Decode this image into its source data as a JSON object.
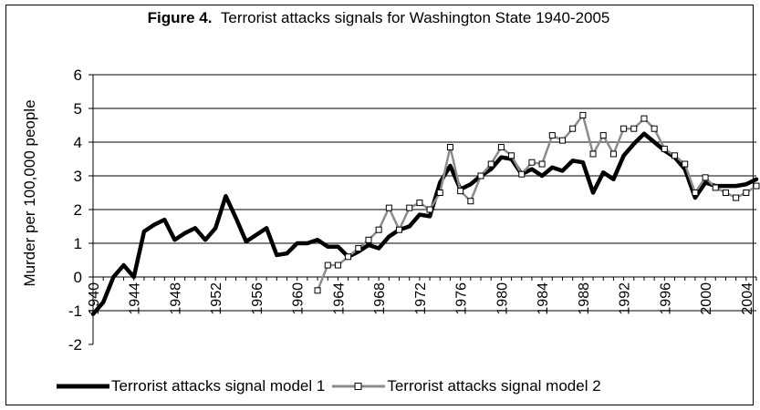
{
  "title_bold": "Figure 4.",
  "title_rest": "Terrorist attacks signals for Washington State 1940-2005",
  "chart_data": {
    "type": "line",
    "title": "Figure 4.  Terrorist attacks signals for Washington State 1940-2005",
    "xlabel": "",
    "ylabel": "Murder per 100,000 people",
    "ylim": [
      -2,
      6
    ],
    "xlim": [
      1940,
      2005
    ],
    "yticks": [
      -2,
      -1,
      0,
      1,
      2,
      3,
      4,
      5,
      6
    ],
    "xticks": [
      1940,
      1944,
      1948,
      1952,
      1956,
      1960,
      1964,
      1968,
      1972,
      1976,
      1980,
      1984,
      1988,
      1992,
      1996,
      2000,
      2004
    ],
    "grid": "horizontal",
    "legend_position": "bottom",
    "series": [
      {
        "name": "Terrorist attacks signal model 1",
        "color": "#000000",
        "x": [
          1940,
          1941,
          1942,
          1943,
          1944,
          1945,
          1946,
          1947,
          1948,
          1949,
          1950,
          1951,
          1952,
          1953,
          1954,
          1955,
          1956,
          1957,
          1958,
          1959,
          1960,
          1961,
          1962,
          1963,
          1964,
          1965,
          1966,
          1967,
          1968,
          1969,
          1970,
          1971,
          1972,
          1973,
          1974,
          1975,
          1976,
          1977,
          1978,
          1979,
          1980,
          1981,
          1982,
          1983,
          1984,
          1985,
          1986,
          1987,
          1988,
          1989,
          1990,
          1991,
          1992,
          1993,
          1994,
          1995,
          1996,
          1997,
          1998,
          1999,
          2000,
          2001,
          2002,
          2003,
          2004,
          2005
        ],
        "values": [
          -1.1,
          -0.75,
          0.0,
          0.35,
          0.0,
          1.35,
          1.55,
          1.7,
          1.1,
          1.3,
          1.45,
          1.1,
          1.45,
          2.4,
          1.75,
          1.05,
          1.25,
          1.45,
          0.65,
          0.7,
          1.0,
          1.0,
          1.1,
          0.9,
          0.9,
          0.6,
          0.75,
          0.95,
          0.85,
          1.2,
          1.4,
          1.5,
          1.85,
          1.8,
          2.8,
          3.3,
          2.6,
          2.75,
          3.0,
          3.2,
          3.55,
          3.5,
          3.05,
          3.2,
          3.0,
          3.25,
          3.15,
          3.45,
          3.4,
          2.5,
          3.1,
          2.9,
          3.6,
          3.95,
          4.25,
          4.0,
          3.75,
          3.55,
          3.2,
          2.35,
          2.8,
          2.7,
          2.7,
          2.7,
          2.75,
          2.9
        ]
      },
      {
        "name": "Terrorist attacks signal model 2",
        "color": "#8c8c8c",
        "x": [
          1962,
          1963,
          1964,
          1965,
          1966,
          1967,
          1968,
          1969,
          1970,
          1971,
          1972,
          1973,
          1974,
          1975,
          1976,
          1977,
          1978,
          1979,
          1980,
          1981,
          1982,
          1983,
          1984,
          1985,
          1986,
          1987,
          1988,
          1989,
          1990,
          1991,
          1992,
          1993,
          1994,
          1995,
          1996,
          1997,
          1998,
          1999,
          2000,
          2001,
          2002,
          2003,
          2004,
          2005
        ],
        "values": [
          -0.4,
          0.35,
          0.35,
          0.6,
          0.85,
          1.1,
          1.4,
          2.05,
          1.4,
          2.05,
          2.2,
          2.0,
          2.5,
          3.85,
          2.55,
          2.25,
          3.0,
          3.35,
          3.85,
          3.6,
          3.05,
          3.4,
          3.35,
          4.2,
          4.05,
          4.4,
          4.8,
          3.65,
          4.2,
          3.65,
          4.4,
          4.4,
          4.7,
          4.4,
          3.8,
          3.6,
          3.35,
          2.5,
          2.95,
          2.65,
          2.5,
          2.35,
          2.5,
          2.7
        ]
      }
    ]
  }
}
